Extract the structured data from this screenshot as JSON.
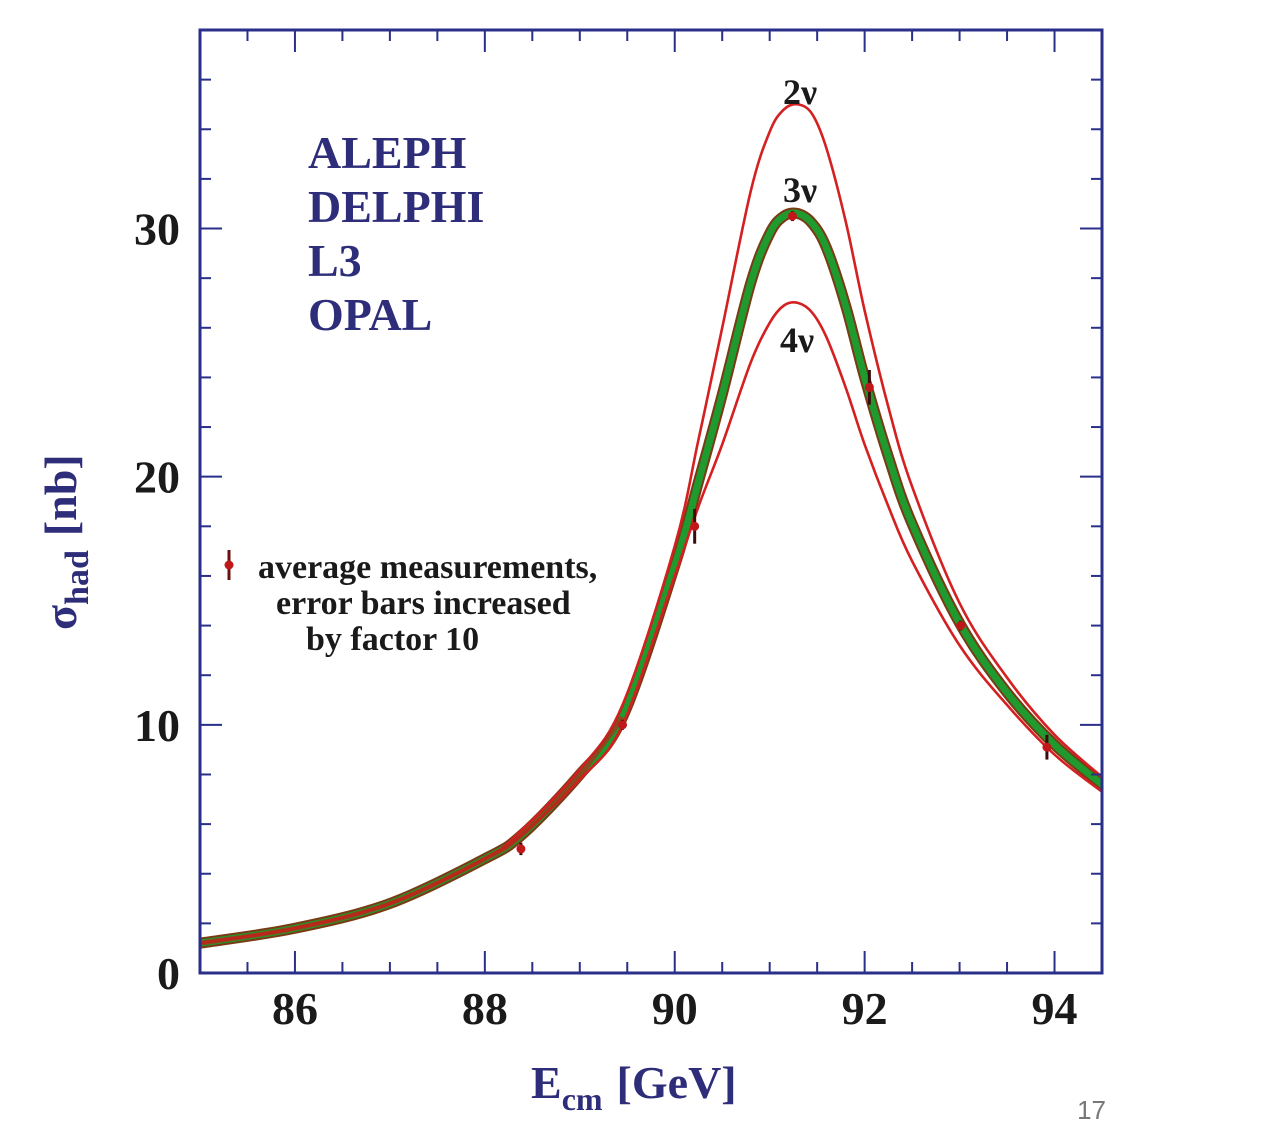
{
  "chart_data": {
    "type": "line",
    "xlabel": {
      "main": "E",
      "sub": "cm",
      "unit": "[GeV]"
    },
    "ylabel": {
      "main": "σ",
      "sub": "had",
      "unit": "[nb]"
    },
    "xlim": [
      85,
      94.5
    ],
    "ylim": [
      0,
      38
    ],
    "x_ticks": [
      86,
      88,
      90,
      92,
      94
    ],
    "x_tick_labels": [
      "86",
      "88",
      "90",
      "92",
      "94"
    ],
    "y_ticks": [
      0,
      10,
      20,
      30
    ],
    "y_tick_labels": [
      "0",
      "10",
      "20",
      "30"
    ],
    "experiments": [
      "ALEPH",
      "DELPHI",
      "L3",
      "OPAL"
    ],
    "legend_text": [
      "average measurements,",
      "error bars increased",
      "by factor 10"
    ],
    "series": [
      {
        "name": "2ν",
        "color": "#d42020",
        "x": [
          85.0,
          86.0,
          87.0,
          88.0,
          88.4,
          89.0,
          89.45,
          90.0,
          90.25,
          90.5,
          90.8,
          91.0,
          91.15,
          91.3,
          91.45,
          91.6,
          91.8,
          92.0,
          92.25,
          92.5,
          93.0,
          93.5,
          94.0,
          94.5
        ],
        "y": [
          1.2,
          1.8,
          2.8,
          4.6,
          5.8,
          8.2,
          10.8,
          17.2,
          21.5,
          26.0,
          31.5,
          33.9,
          34.8,
          35.0,
          34.6,
          33.2,
          30.3,
          26.7,
          22.8,
          19.6,
          14.9,
          11.9,
          9.6,
          7.9
        ]
      },
      {
        "name": "3ν",
        "color": "#1e9a2e",
        "x": [
          85.0,
          86.0,
          87.0,
          88.0,
          88.4,
          89.0,
          89.45,
          90.0,
          90.25,
          90.5,
          90.8,
          91.0,
          91.15,
          91.3,
          91.45,
          91.6,
          91.8,
          92.0,
          92.25,
          92.5,
          93.0,
          93.5,
          94.0,
          94.5
        ],
        "y": [
          1.2,
          1.8,
          2.8,
          4.6,
          5.6,
          8.0,
          10.3,
          16.4,
          19.8,
          23.3,
          27.8,
          29.8,
          30.5,
          30.6,
          30.2,
          29.2,
          26.9,
          24.0,
          20.8,
          18.1,
          14.1,
          11.3,
          9.2,
          7.6
        ]
      },
      {
        "name": "4ν",
        "color": "#d42020",
        "x": [
          85.0,
          86.0,
          87.0,
          88.0,
          88.4,
          89.0,
          89.45,
          90.0,
          90.25,
          90.5,
          90.8,
          91.0,
          91.15,
          91.3,
          91.45,
          91.6,
          91.8,
          92.0,
          92.25,
          92.5,
          93.0,
          93.5,
          94.0,
          94.5
        ],
        "y": [
          1.2,
          1.8,
          2.8,
          4.6,
          5.6,
          7.8,
          10.0,
          16.0,
          18.8,
          21.3,
          24.6,
          26.2,
          26.9,
          27.0,
          26.6,
          25.6,
          23.6,
          21.3,
          18.8,
          16.6,
          13.2,
          10.8,
          8.8,
          7.3
        ]
      }
    ],
    "measurements": {
      "color": "#c0181a",
      "x": [
        88.38,
        89.45,
        90.21,
        91.24,
        92.05,
        93.01,
        93.92
      ],
      "y": [
        5.0,
        10.0,
        18.0,
        30.5,
        23.6,
        14.0,
        9.1
      ],
      "err": [
        0.25,
        0.2,
        0.7,
        0.2,
        0.7,
        0.2,
        0.5
      ]
    }
  },
  "page_number": "17",
  "colors": {
    "frame": "#2a2f8a",
    "title_text": "#2e2d7a",
    "green_band": "#1e9a2e",
    "red_curve": "#d42020"
  }
}
